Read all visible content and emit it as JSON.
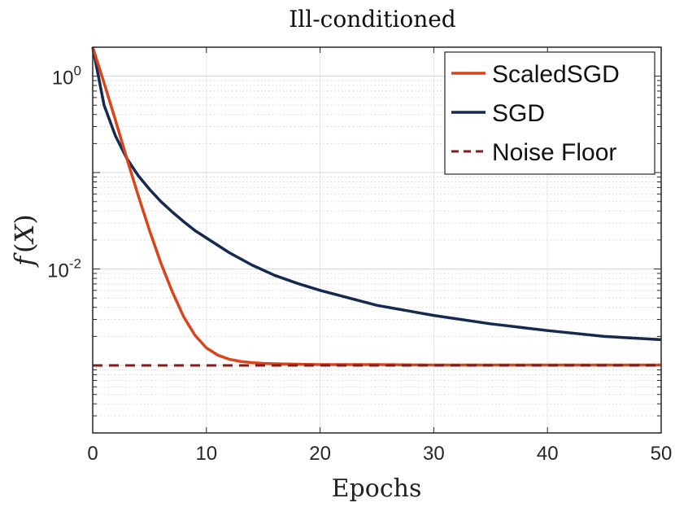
{
  "chart_data": {
    "type": "line",
    "title": "Ill-conditioned",
    "xlabel": "Epochs",
    "ylabel": "f(X)",
    "ylabel_parts": {
      "f": "f",
      "open": "(",
      "x": "X",
      "close": ")"
    },
    "xscale": "linear",
    "yscale": "log",
    "xlim": [
      0,
      50
    ],
    "ylim_log10": [
      -3.7,
      0.3
    ],
    "grid": true,
    "legend_position": "top-right",
    "x_ticks": [
      {
        "value": 0,
        "label": "0"
      },
      {
        "value": 10,
        "label": "10"
      },
      {
        "value": 20,
        "label": "20"
      },
      {
        "value": 30,
        "label": "30"
      },
      {
        "value": 40,
        "label": "40"
      },
      {
        "value": 50,
        "label": "50"
      }
    ],
    "y_ticks": [
      {
        "value": 1,
        "base": "10",
        "exp": "0"
      },
      {
        "value": 0.01,
        "base": "10",
        "exp": "-2"
      }
    ],
    "series": [
      {
        "name": "ScaledSGD",
        "color": "#d9441a",
        "style": "solid",
        "x": [
          0,
          1,
          2,
          3,
          4,
          5,
          6,
          7,
          8,
          9,
          10,
          11,
          12,
          13,
          14,
          15,
          16,
          18,
          20,
          25,
          30,
          35,
          40,
          45,
          50
        ],
        "y": [
          2.0,
          0.85,
          0.35,
          0.14,
          0.058,
          0.025,
          0.0115,
          0.0058,
          0.0032,
          0.00205,
          0.00152,
          0.00128,
          0.00116,
          0.0011,
          0.00107,
          0.00105,
          0.00104,
          0.00103,
          0.00102,
          0.00102,
          0.00101,
          0.00101,
          0.00101,
          0.00101,
          0.00101
        ]
      },
      {
        "name": "SGD",
        "color": "#142a4f",
        "style": "solid",
        "x": [
          0,
          1,
          2,
          3,
          4,
          5,
          6,
          7,
          8,
          9,
          10,
          12,
          14,
          16,
          18,
          20,
          25,
          30,
          35,
          40,
          45,
          50
        ],
        "y": [
          2.0,
          0.5,
          0.24,
          0.14,
          0.093,
          0.067,
          0.05,
          0.039,
          0.031,
          0.025,
          0.021,
          0.0148,
          0.011,
          0.0086,
          0.0071,
          0.006,
          0.0042,
          0.0033,
          0.0027,
          0.0023,
          0.002,
          0.00185
        ]
      },
      {
        "name": "Noise Floor",
        "color": "#8b1a1a",
        "style": "dashed",
        "x": [
          0,
          50
        ],
        "y": [
          0.001,
          0.001
        ]
      }
    ]
  }
}
